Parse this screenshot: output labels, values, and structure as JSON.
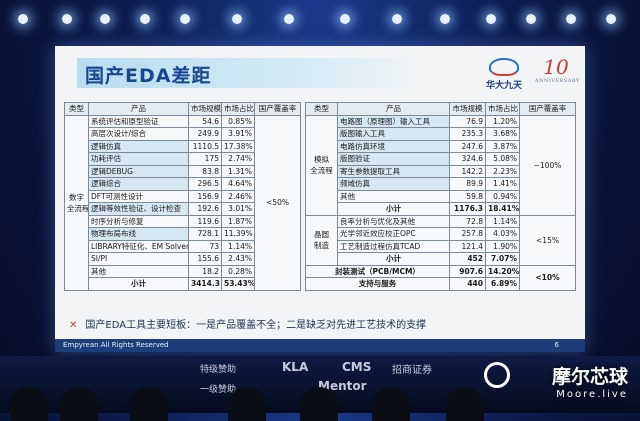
{
  "slide": {
    "title": "国产EDA差距",
    "logo_left_text": "华大九天",
    "logo_right_number": "10",
    "logo_right_caption": "ANNIVERSARY",
    "conclusion_marker": "✕",
    "conclusion": "国产EDA工具主要短板：一是产品覆盖不全；二是缺乏对先进工艺技术的支撑",
    "footer_copyright": "Empyrean All Rights Reserved",
    "page_number": "6"
  },
  "headers": [
    "类型",
    "产品",
    "市场规模",
    "市场占比",
    "国产覆盖率"
  ],
  "left_table": {
    "group_label": "数字\n全流程",
    "coverage": "<50%",
    "rows": [
      {
        "product": "系统评估和原型验证",
        "size": "54.6",
        "share": "0.85%",
        "hl": false
      },
      {
        "product": "高层次设计/综合",
        "size": "249.9",
        "share": "3.91%",
        "hl": false
      },
      {
        "product": "逻辑仿真",
        "size": "1110.5",
        "share": "17.38%",
        "hl": true
      },
      {
        "product": "功耗评估",
        "size": "175",
        "share": "2.74%",
        "hl": true
      },
      {
        "product": "逻辑DEBUG",
        "size": "83.8",
        "share": "1.31%",
        "hl": true
      },
      {
        "product": "逻辑综合",
        "size": "296.5",
        "share": "4.64%",
        "hl": true
      },
      {
        "product": "DFT可测性设计",
        "size": "156.9",
        "share": "2.46%",
        "hl": false
      },
      {
        "product": "逻辑等效性验证、设计检查",
        "size": "192.6",
        "share": "3.01%",
        "hl": true
      },
      {
        "product": "时序分析与修复",
        "size": "119.6",
        "share": "1.87%",
        "hl": false
      },
      {
        "product": "物理布局布线",
        "size": "728.1",
        "share": "11.39%",
        "hl": true
      },
      {
        "product": "LIBRARY特征化、EM Solver",
        "size": "73",
        "share": "1.14%",
        "hl": false
      },
      {
        "product": "SI/PI",
        "size": "155.6",
        "share": "2.43%",
        "hl": false
      },
      {
        "product": "其他",
        "size": "18.2",
        "share": "0.28%",
        "hl": false
      }
    ],
    "subtotal": {
      "label": "小计",
      "size": "3414.3",
      "share": "53.43%"
    }
  },
  "right_table": {
    "analog": {
      "group_label": "模拟\n全流程",
      "coverage": "~100%",
      "rows": [
        {
          "product": "电路图（原理图）输入工具",
          "size": "76.9",
          "share": "1.20%",
          "hl": true
        },
        {
          "product": "版图输入工具",
          "size": "235.3",
          "share": "3.68%",
          "hl": true
        },
        {
          "product": "电路仿真环境",
          "size": "247.6",
          "share": "3.87%",
          "hl": true
        },
        {
          "product": "版图验证",
          "size": "324.6",
          "share": "5.08%",
          "hl": true
        },
        {
          "product": "寄生参数提取工具",
          "size": "142.2",
          "share": "2.23%",
          "hl": true
        },
        {
          "product": "频域仿真",
          "size": "89.9",
          "share": "1.41%",
          "hl": true
        },
        {
          "product": "其他",
          "size": "59.8",
          "share": "0.94%",
          "hl": false
        }
      ],
      "subtotal": {
        "label": "小计",
        "size": "1176.3",
        "share": "18.41%"
      }
    },
    "fab": {
      "group_label": "晶圆\n制造",
      "coverage": "<15%",
      "rows": [
        {
          "product": "良率分析与优化及其他",
          "size": "72.8",
          "share": "1.14%",
          "hl": false
        },
        {
          "product": "光学邻近效应校正OPC",
          "size": "257.8",
          "share": "4.03%",
          "hl": false
        },
        {
          "product": "工艺制造过程仿真TCAD",
          "size": "121.4",
          "share": "1.90%",
          "hl": false
        }
      ],
      "subtotal": {
        "label": "小计",
        "size": "452",
        "share": "7.07%"
      }
    },
    "packaging": {
      "label": "封装测试（PCB/MCM）",
      "size": "907.6",
      "share": "14.20%",
      "coverage": "<10%"
    },
    "support": {
      "label": "支持与服务",
      "size": "440",
      "share": "6.89%"
    }
  },
  "sponsors": [
    "特级赞助",
    "KLA",
    "CMS",
    "招商证券",
    "一级赞助",
    "Mentor"
  ],
  "watermark": {
    "name": "摩尔芯球",
    "sub": "Moore.live"
  }
}
